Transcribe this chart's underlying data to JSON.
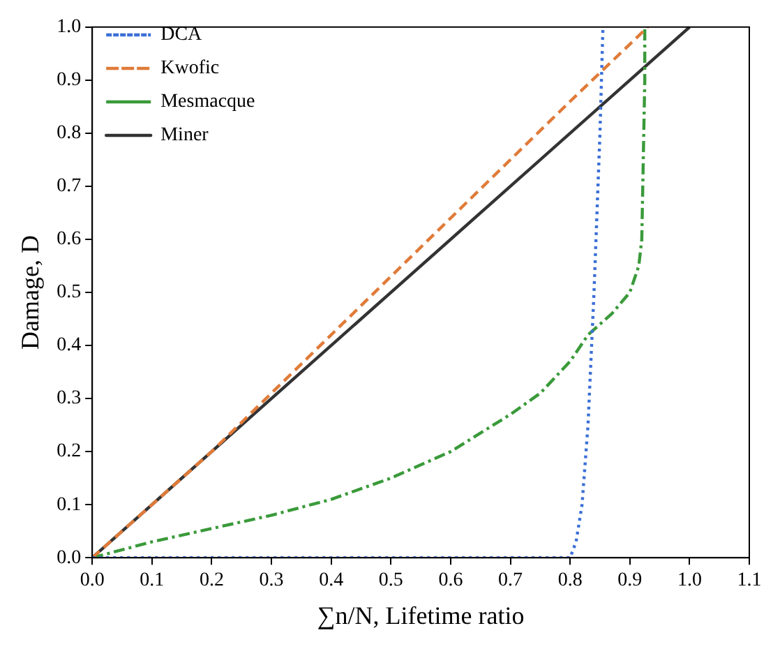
{
  "chart_data": {
    "type": "line",
    "xlabel": "∑n/N, Lifetime ratio",
    "ylabel": "Damage, D",
    "xlim": [
      0,
      1.1
    ],
    "ylim": [
      0,
      1
    ],
    "xticks": [
      {
        "value": 0,
        "label": "0.0"
      },
      0.1,
      0.2,
      0.3,
      0.4,
      0.5,
      0.6,
      0.7,
      0.8,
      0.9,
      {
        "value": 1,
        "label": "1.0"
      },
      1.1
    ],
    "yticks": [
      {
        "value": 0,
        "label": "0.0"
      },
      0.1,
      0.2,
      0.3,
      0.4,
      0.5,
      0.6,
      0.7,
      0.8,
      0.9,
      {
        "value": 1,
        "label": "1.0"
      }
    ],
    "legend": "top left",
    "marker": "none",
    "grid": false,
    "series": [
      {
        "name": "DCA",
        "color": "#3b6fd6",
        "line_style": "dotted",
        "x": [
          0,
          0.4,
          0.8,
          0.81,
          0.82,
          0.83,
          0.84,
          0.85,
          0.855
        ],
        "values": [
          0,
          0,
          0,
          0.03,
          0.1,
          0.25,
          0.5,
          0.8,
          1
        ]
      },
      {
        "name": "Kwofic",
        "color": "#e07b39",
        "line_style": "dashed",
        "x": [
          0,
          0.2,
          0.4,
          0.6,
          0.8,
          0.93
        ],
        "values": [
          0,
          0.2,
          0.42,
          0.64,
          0.86,
          1
        ]
      },
      {
        "name": "Mesmacque",
        "color": "#3a9a3a",
        "line_style": "dashdot",
        "x": [
          0,
          0.1,
          0.2,
          0.3,
          0.4,
          0.5,
          0.6,
          0.7,
          0.75,
          0.8,
          0.83,
          0.85,
          0.87,
          0.9,
          0.915,
          0.92,
          0.925,
          0.925
        ],
        "values": [
          0,
          0.03,
          0.055,
          0.08,
          0.11,
          0.15,
          0.2,
          0.27,
          0.31,
          0.37,
          0.42,
          0.44,
          0.46,
          0.5,
          0.55,
          0.6,
          0.9,
          1
        ]
      },
      {
        "name": "Miner",
        "color": "#333333",
        "line_style": "solid",
        "x": [
          0,
          1
        ],
        "values": [
          0,
          1
        ]
      }
    ]
  }
}
